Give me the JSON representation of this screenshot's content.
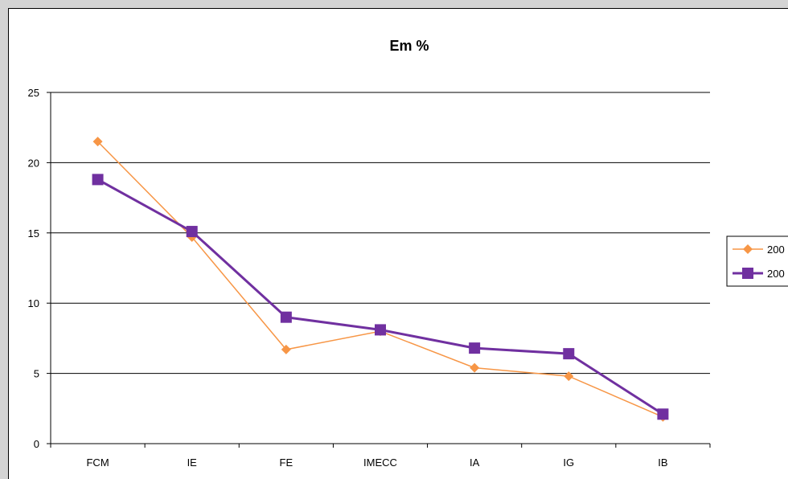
{
  "chart_data": {
    "type": "line",
    "title": "Em %",
    "xlabel": "",
    "ylabel": "",
    "categories": [
      "FCM",
      "IE",
      "FE",
      "IMECC",
      "IA",
      "IG",
      "IB"
    ],
    "ylim": [
      0,
      25
    ],
    "yticks": [
      0,
      5,
      10,
      15,
      20,
      25
    ],
    "grid": true,
    "legend_position": "right",
    "series": [
      {
        "name": "200",
        "color": "#f79646",
        "marker": "diamond",
        "values": [
          21.5,
          14.7,
          6.7,
          8.0,
          5.4,
          4.8,
          1.9
        ]
      },
      {
        "name": "200",
        "color": "#7030a0",
        "marker": "square",
        "values": [
          18.8,
          15.1,
          9.0,
          8.1,
          6.8,
          6.4,
          2.1
        ]
      }
    ]
  }
}
